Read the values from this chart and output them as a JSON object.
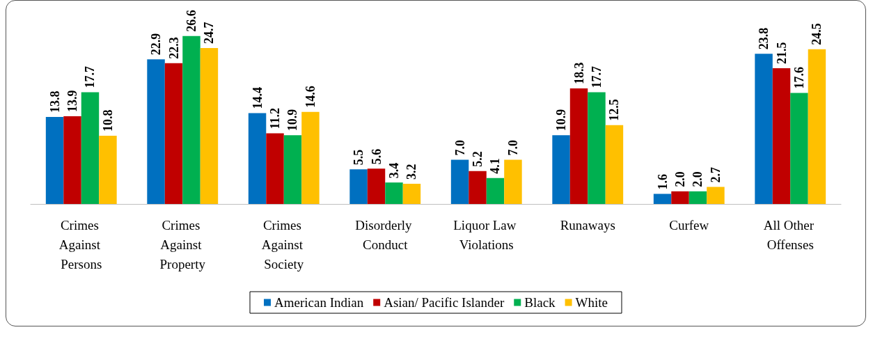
{
  "chart_data": {
    "type": "bar",
    "categories": [
      "Crimes Against Persons",
      "Crimes Against Property",
      "Crimes Against Society",
      "Disorderly Conduct",
      "Liquor Law Violations",
      "Runaways",
      "Curfew",
      "All Other Offenses"
    ],
    "series": [
      {
        "name": "American Indian",
        "color": "#0070c0",
        "values": [
          13.8,
          22.9,
          14.4,
          5.5,
          7.0,
          10.9,
          1.6,
          23.8
        ],
        "value_labels": [
          "13.8",
          "22.9",
          "14.4",
          "5.5",
          "7.0",
          "10.9",
          "1.6",
          "23.8"
        ]
      },
      {
        "name": "Asian/ Pacific Islander",
        "color": "#c00000",
        "values": [
          13.9,
          22.3,
          11.2,
          5.6,
          5.2,
          18.3,
          2.0,
          21.5
        ],
        "value_labels": [
          "13.9",
          "22.3",
          "11.2",
          "5.6",
          "5.2",
          "18.3",
          "2.0",
          "21.5"
        ]
      },
      {
        "name": "Black",
        "color": "#00b050",
        "values": [
          17.7,
          26.6,
          10.9,
          3.4,
          4.1,
          17.7,
          2.0,
          17.6
        ],
        "value_labels": [
          "17.7",
          "26.6",
          "10.9",
          "3.4",
          "4.1",
          "17.7",
          "2.0",
          "17.6"
        ]
      },
      {
        "name": "White",
        "color": "#ffc000",
        "values": [
          10.8,
          24.7,
          14.6,
          3.2,
          7.0,
          12.5,
          2.7,
          24.5
        ],
        "value_labels": [
          "10.8",
          "24.7",
          "14.6",
          "3.2",
          "7.0",
          "12.5",
          "2.7",
          "24.5"
        ]
      }
    ],
    "legend": "bottom"
  }
}
